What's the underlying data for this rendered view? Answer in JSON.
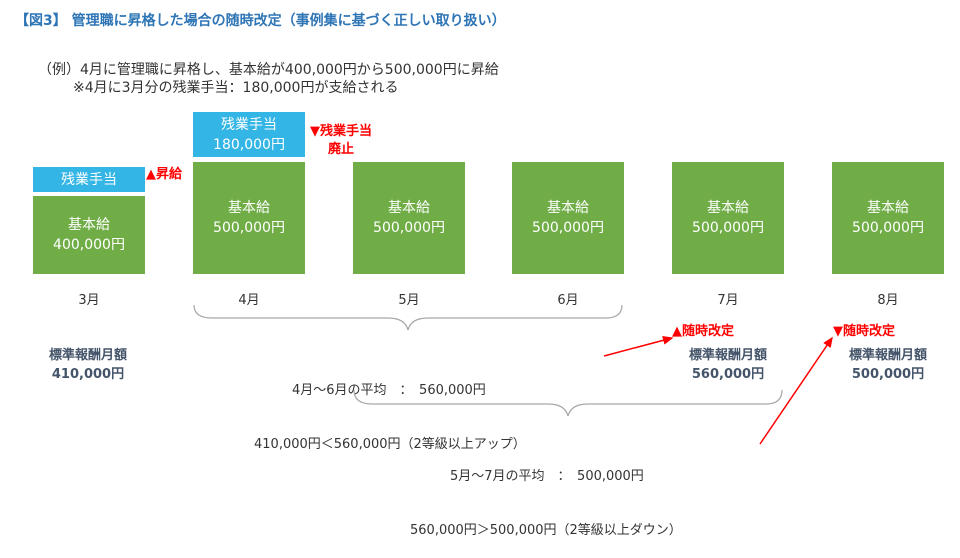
{
  "title": "【図3】 管理職に昇格した場合の随時改定（事例集に基づく正しい取り扱い）",
  "example": {
    "line1": "（例）4月に管理職に昇格し、基本給が400,000円から500,000円に昇給",
    "line2": "※4月に3月分の残業手当：180,000円が支給される"
  },
  "months": [
    {
      "label": "3月",
      "base_name": "基本給",
      "base_value": "400,000円",
      "ot_name": "残業手当",
      "ot_value": ""
    },
    {
      "label": "4月",
      "base_name": "基本給",
      "base_value": "500,000円",
      "ot_name": "残業手当",
      "ot_value": "180,000円"
    },
    {
      "label": "5月",
      "base_name": "基本給",
      "base_value": "500,000円"
    },
    {
      "label": "6月",
      "base_name": "基本給",
      "base_value": "500,000円"
    },
    {
      "label": "7月",
      "base_name": "基本給",
      "base_value": "500,000円"
    },
    {
      "label": "8月",
      "base_name": "基本給",
      "base_value": "500,000円"
    }
  ],
  "annotations": {
    "raise": "▲昇給",
    "ot_abolish_1": "▼残業手当",
    "ot_abolish_2": "廃止",
    "revise_up": "▲随時改定",
    "revise_down": "▼随時改定"
  },
  "standard": [
    {
      "label": "標準報酬月額",
      "value": "410,000円"
    },
    {
      "label": "標準報酬月額",
      "value": "560,000円"
    },
    {
      "label": "標準報酬月額",
      "value": "500,000円"
    }
  ],
  "averages": {
    "apr_jun_line1": "4月～6月の平均　：　560,000円",
    "apr_jun_line2": "410,000円＜560,000円（2等級以上アップ）",
    "may_jul_line1": "5月～7月の平均　：　500,000円",
    "may_jul_line2": "560,000円＞500,000円（2等級以上ダウン）"
  },
  "colors": {
    "base_bar": "#70ad47",
    "overtime_bar": "#33b5e5",
    "title": "#2e75b6",
    "highlight": "#ff0000",
    "standard_text": "#44546a"
  }
}
